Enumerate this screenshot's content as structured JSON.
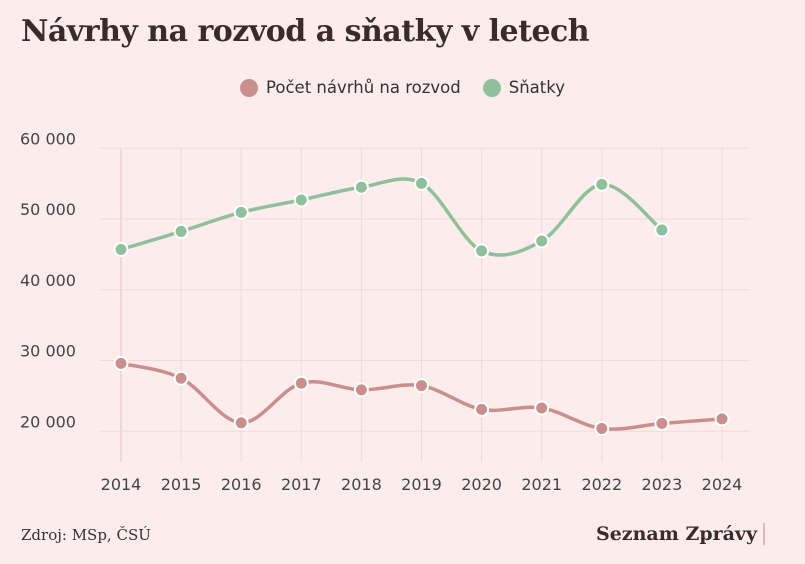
{
  "chart_data": {
    "type": "line",
    "title": "Návrhy na rozvod a sňatky v letech",
    "x": [
      2014,
      2015,
      2016,
      2017,
      2018,
      2019,
      2020,
      2021,
      2022,
      2023,
      2024
    ],
    "x_tick_labels": [
      "2014",
      "2015",
      "2016",
      "2017",
      "2018",
      "2019",
      "2020",
      "2021",
      "2022",
      "2023",
      "2024"
    ],
    "y_tick_labels": [
      "60 000",
      "50 000",
      "40 000",
      "30 000",
      "20 000"
    ],
    "y_ticks": [
      60000,
      50000,
      40000,
      30000,
      20000
    ],
    "ylim": [
      15000,
      62000
    ],
    "grid": true,
    "legend_position": "top",
    "series": [
      {
        "name": "Počet návrhů na rozvod",
        "color": "#c98f8f",
        "values": [
          29600,
          27500,
          21200,
          26800,
          25850,
          26450,
          23100,
          23300,
          20400,
          21100,
          21750
        ]
      },
      {
        "name": "Sňatky",
        "color": "#8fbf9c",
        "values": [
          45700,
          48250,
          50950,
          52700,
          54500,
          55050,
          45500,
          46900,
          54900,
          48450,
          null
        ]
      }
    ]
  },
  "source": "Zdroj: MSp, ČSÚ",
  "brand": "Seznam Zprávy"
}
